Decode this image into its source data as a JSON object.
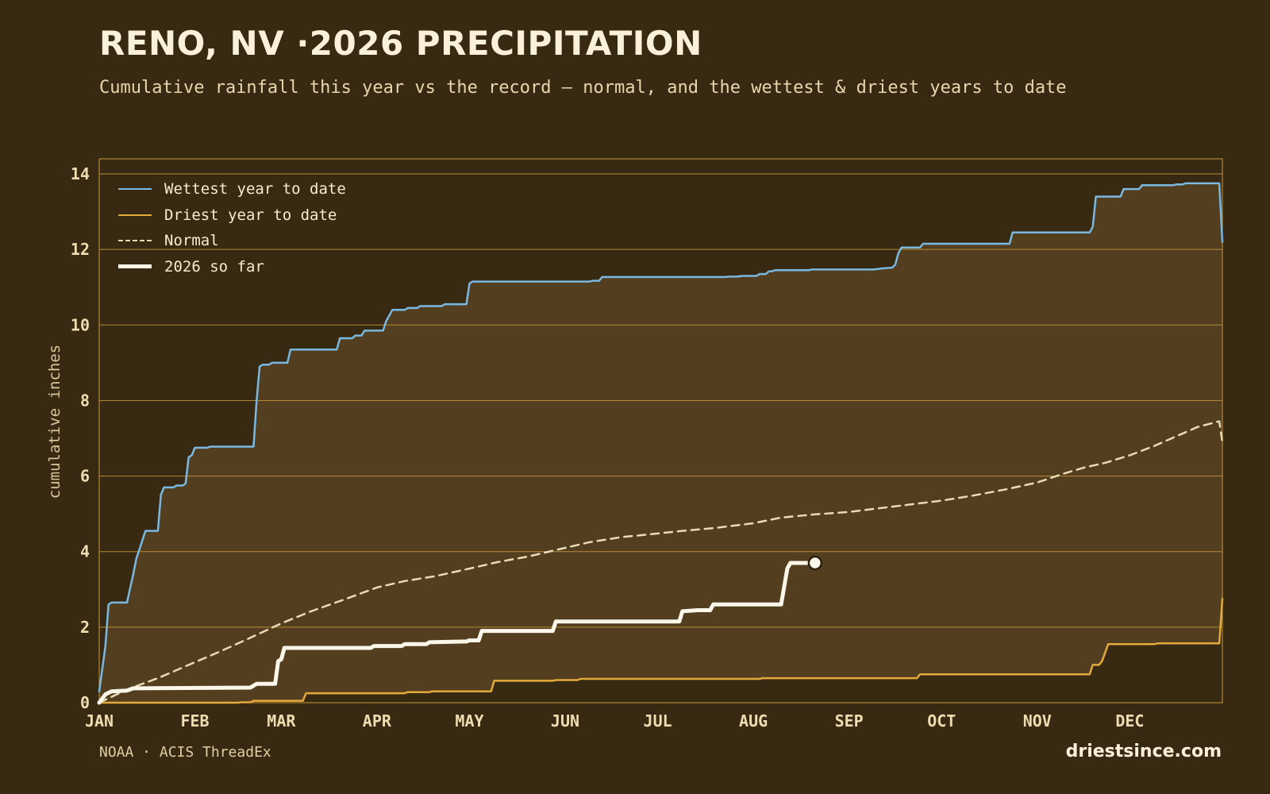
{
  "header": {
    "title": "RENO, NV ·2026 PRECIPITATION",
    "subtitle": "Cumulative rainfall this year vs the record — normal, and the wettest & driest years to date"
  },
  "footer": {
    "source": "NOAA · ACIS ThreadEx",
    "brand": "driestsince.com"
  },
  "colors": {
    "background": "#382a12",
    "band_fill": "#533f1f",
    "grid": "#c79a3a",
    "wettest": "#79b8e0",
    "driest": "#e3a93a",
    "normal": "#e9dbb4",
    "current": "#fbf6ea",
    "tick_text": "#efdcb1"
  },
  "chart_data": {
    "type": "line",
    "title": "RENO, NV ·2026 PRECIPITATION",
    "xlabel": "",
    "ylabel": "cumulative inches",
    "xlim": [
      1,
      365
    ],
    "ylim": [
      0,
      14.4
    ],
    "yticks": [
      0,
      2,
      4,
      6,
      8,
      10,
      12,
      14
    ],
    "xticks": [
      {
        "day": 1,
        "label": "JAN"
      },
      {
        "day": 32,
        "label": "FEB"
      },
      {
        "day": 60,
        "label": "MAR"
      },
      {
        "day": 91,
        "label": "APR"
      },
      {
        "day": 121,
        "label": "MAY"
      },
      {
        "day": 152,
        "label": "JUN"
      },
      {
        "day": 182,
        "label": "JUL"
      },
      {
        "day": 213,
        "label": "AUG"
      },
      {
        "day": 244,
        "label": "SEP"
      },
      {
        "day": 274,
        "label": "OCT"
      },
      {
        "day": 305,
        "label": "NOV"
      },
      {
        "day": 335,
        "label": "DEC"
      }
    ],
    "grid": true,
    "legend_position": "top-left",
    "series": [
      {
        "name": "Wettest year to date",
        "key": "wettest",
        "points": [
          [
            1,
            0.3
          ],
          [
            3,
            1.5
          ],
          [
            4,
            2.6
          ],
          [
            5,
            2.65
          ],
          [
            7,
            2.65
          ],
          [
            8,
            2.65
          ],
          [
            10,
            2.65
          ],
          [
            12,
            3.4
          ],
          [
            13,
            3.8
          ],
          [
            16,
            4.55
          ],
          [
            20,
            4.55
          ],
          [
            21,
            5.5
          ],
          [
            22,
            5.7
          ],
          [
            25,
            5.7
          ],
          [
            26,
            5.75
          ],
          [
            28,
            5.75
          ],
          [
            29,
            5.8
          ],
          [
            30,
            6.5
          ],
          [
            31,
            6.55
          ],
          [
            32,
            6.75
          ],
          [
            36,
            6.75
          ],
          [
            37,
            6.78
          ],
          [
            51,
            6.78
          ],
          [
            52,
            8.0
          ],
          [
            53,
            8.9
          ],
          [
            54,
            8.95
          ],
          [
            56,
            8.95
          ],
          [
            57,
            9.0
          ],
          [
            62,
            9.0
          ],
          [
            63,
            9.35
          ],
          [
            78,
            9.35
          ],
          [
            79,
            9.65
          ],
          [
            83,
            9.65
          ],
          [
            84,
            9.72
          ],
          [
            86,
            9.72
          ],
          [
            87,
            9.85
          ],
          [
            93,
            9.85
          ],
          [
            94,
            10.1
          ],
          [
            96,
            10.4
          ],
          [
            100,
            10.4
          ],
          [
            101,
            10.45
          ],
          [
            104,
            10.45
          ],
          [
            105,
            10.5
          ],
          [
            112,
            10.5
          ],
          [
            113,
            10.55
          ],
          [
            120,
            10.55
          ],
          [
            121,
            11.1
          ],
          [
            122,
            11.15
          ],
          [
            160,
            11.15
          ],
          [
            161,
            11.17
          ],
          [
            163,
            11.17
          ],
          [
            164,
            11.27
          ],
          [
            204,
            11.27
          ],
          [
            205,
            11.28
          ],
          [
            208,
            11.28
          ],
          [
            209,
            11.3
          ],
          [
            214,
            11.3
          ],
          [
            215,
            11.35
          ],
          [
            217,
            11.35
          ],
          [
            218,
            11.42
          ],
          [
            219,
            11.42
          ],
          [
            220,
            11.45
          ],
          [
            231,
            11.45
          ],
          [
            232,
            11.47
          ],
          [
            252,
            11.47
          ],
          [
            255,
            11.5
          ],
          [
            258,
            11.52
          ],
          [
            259,
            11.6
          ],
          [
            260,
            11.9
          ],
          [
            261,
            12.05
          ],
          [
            267,
            12.05
          ],
          [
            268,
            12.15
          ],
          [
            296,
            12.15
          ],
          [
            297,
            12.45
          ],
          [
            322,
            12.45
          ],
          [
            323,
            12.6
          ],
          [
            324,
            13.4
          ],
          [
            332,
            13.4
          ],
          [
            333,
            13.6
          ],
          [
            338,
            13.6
          ],
          [
            339,
            13.7
          ],
          [
            349,
            13.7
          ],
          [
            350,
            13.72
          ],
          [
            352,
            13.72
          ],
          [
            353,
            13.75
          ],
          [
            364,
            13.75
          ],
          [
            365,
            12.2
          ]
        ]
      },
      {
        "name": "Driest year to date",
        "key": "driest",
        "points": [
          [
            1,
            0.0
          ],
          [
            46,
            0.0
          ],
          [
            47,
            0.01
          ],
          [
            50,
            0.01
          ],
          [
            51,
            0.05
          ],
          [
            67,
            0.05
          ],
          [
            68,
            0.25
          ],
          [
            100,
            0.25
          ],
          [
            101,
            0.28
          ],
          [
            108,
            0.28
          ],
          [
            109,
            0.3
          ],
          [
            128,
            0.3
          ],
          [
            129,
            0.58
          ],
          [
            148,
            0.58
          ],
          [
            149,
            0.6
          ],
          [
            156,
            0.6
          ],
          [
            157,
            0.63
          ],
          [
            215,
            0.63
          ],
          [
            216,
            0.65
          ],
          [
            266,
            0.65
          ],
          [
            267,
            0.75
          ],
          [
            322,
            0.75
          ],
          [
            323,
            1.0
          ],
          [
            325,
            1.0
          ],
          [
            326,
            1.1
          ],
          [
            328,
            1.55
          ],
          [
            343,
            1.55
          ],
          [
            344,
            1.57
          ],
          [
            364,
            1.57
          ],
          [
            365,
            2.75
          ]
        ]
      },
      {
        "name": "Normal",
        "key": "normal",
        "points": [
          [
            1,
            0.0
          ],
          [
            10,
            0.35
          ],
          [
            20,
            0.65
          ],
          [
            30,
            1.0
          ],
          [
            40,
            1.35
          ],
          [
            50,
            1.72
          ],
          [
            60,
            2.1
          ],
          [
            70,
            2.43
          ],
          [
            80,
            2.72
          ],
          [
            91,
            3.05
          ],
          [
            100,
            3.22
          ],
          [
            110,
            3.35
          ],
          [
            121,
            3.55
          ],
          [
            130,
            3.72
          ],
          [
            140,
            3.87
          ],
          [
            152,
            4.1
          ],
          [
            160,
            4.25
          ],
          [
            170,
            4.38
          ],
          [
            182,
            4.48
          ],
          [
            190,
            4.55
          ],
          [
            200,
            4.62
          ],
          [
            213,
            4.75
          ],
          [
            222,
            4.9
          ],
          [
            232,
            4.98
          ],
          [
            244,
            5.05
          ],
          [
            254,
            5.15
          ],
          [
            264,
            5.25
          ],
          [
            274,
            5.35
          ],
          [
            284,
            5.48
          ],
          [
            295,
            5.65
          ],
          [
            305,
            5.83
          ],
          [
            313,
            6.05
          ],
          [
            320,
            6.22
          ],
          [
            327,
            6.35
          ],
          [
            335,
            6.55
          ],
          [
            343,
            6.8
          ],
          [
            350,
            7.05
          ],
          [
            357,
            7.3
          ],
          [
            364,
            7.45
          ],
          [
            365,
            6.9
          ]
        ]
      },
      {
        "name": "2026 so far",
        "key": "current",
        "points": [
          [
            1,
            0.0
          ],
          [
            3,
            0.22
          ],
          [
            5,
            0.3
          ],
          [
            10,
            0.32
          ],
          [
            12,
            0.38
          ],
          [
            50,
            0.4
          ],
          [
            52,
            0.5
          ],
          [
            58,
            0.5
          ],
          [
            59,
            1.1
          ],
          [
            60,
            1.15
          ],
          [
            61,
            1.45
          ],
          [
            89,
            1.45
          ],
          [
            90,
            1.5
          ],
          [
            99,
            1.5
          ],
          [
            100,
            1.55
          ],
          [
            107,
            1.55
          ],
          [
            108,
            1.6
          ],
          [
            120,
            1.62
          ],
          [
            121,
            1.65
          ],
          [
            124,
            1.65
          ],
          [
            125,
            1.9
          ],
          [
            148,
            1.9
          ],
          [
            149,
            2.15
          ],
          [
            189,
            2.15
          ],
          [
            190,
            2.42
          ],
          [
            195,
            2.45
          ],
          [
            199,
            2.45
          ],
          [
            200,
            2.6
          ],
          [
            222,
            2.6
          ],
          [
            224,
            3.55
          ],
          [
            225,
            3.7
          ],
          [
            233,
            3.7
          ]
        ]
      }
    ],
    "current_marker": {
      "day": 233,
      "value": 3.7
    }
  }
}
